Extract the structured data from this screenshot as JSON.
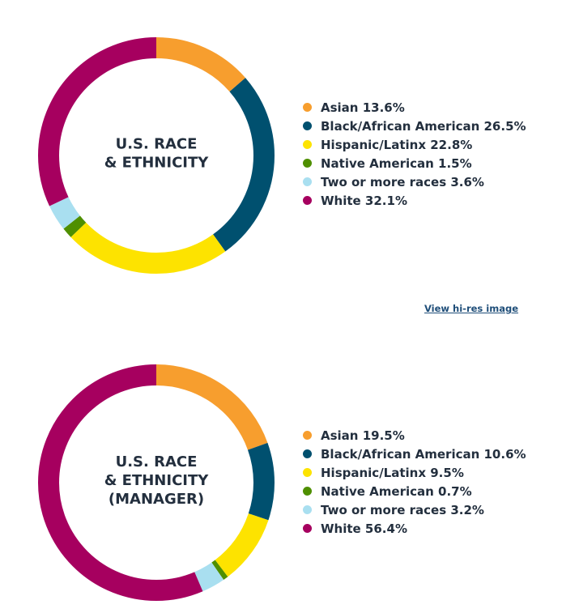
{
  "colors": {
    "Asian": "#f79e2e",
    "Black/African American": "#00506f",
    "Hispanic/Latinx": "#fde300",
    "Native American": "#4f8f00",
    "Two or more races": "#a9dff0",
    "White": "#a6005f"
  },
  "link": {
    "view_hires": "View hi-res image"
  },
  "chart_data": [
    {
      "type": "pie",
      "variant": "donut",
      "center_label": [
        "U.S. RACE",
        "& ETHNICITY"
      ],
      "legend_position": "right",
      "series": [
        {
          "name": "Asian",
          "value": 13.6,
          "label": "Asian 13.6%"
        },
        {
          "name": "Black/African American",
          "value": 26.5,
          "label": "Black/African American 26.5%"
        },
        {
          "name": "Hispanic/Latinx",
          "value": 22.8,
          "label": "Hispanic/Latinx 22.8%"
        },
        {
          "name": "Native American",
          "value": 1.5,
          "label": "Native American 1.5%"
        },
        {
          "name": "Two or more races",
          "value": 3.6,
          "label": "Two or more races 3.6%"
        },
        {
          "name": "White",
          "value": 32.1,
          "label": "White 32.1%"
        }
      ]
    },
    {
      "type": "pie",
      "variant": "donut",
      "center_label": [
        "U.S. RACE",
        "& ETHNICITY",
        "(MANAGER)"
      ],
      "legend_position": "right",
      "series": [
        {
          "name": "Asian",
          "value": 19.5,
          "label": "Asian 19.5%"
        },
        {
          "name": "Black/African American",
          "value": 10.6,
          "label": "Black/African American 10.6%"
        },
        {
          "name": "Hispanic/Latinx",
          "value": 9.5,
          "label": "Hispanic/Latinx 9.5%"
        },
        {
          "name": "Native American",
          "value": 0.7,
          "label": "Native American 0.7%"
        },
        {
          "name": "Two or more races",
          "value": 3.2,
          "label": "Two or more races 3.2%"
        },
        {
          "name": "White",
          "value": 56.4,
          "label": "White 56.4%"
        }
      ]
    }
  ]
}
